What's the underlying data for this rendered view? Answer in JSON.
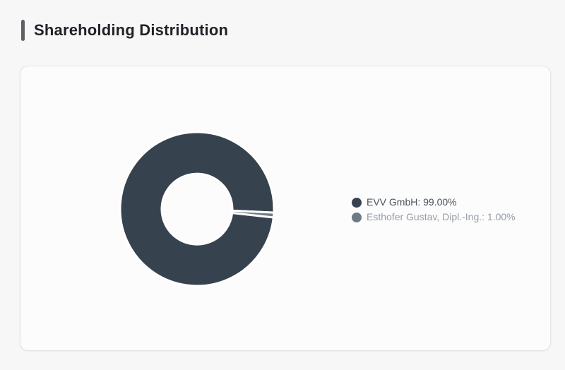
{
  "page": {
    "title": "Shareholding Distribution"
  },
  "colors": {
    "page_bg": "#f7f7f8",
    "card_bg": "#fcfcfd",
    "card_border": "#e4e5e7",
    "title_text": "#1f2226",
    "title_accent_bar": "#5d6165",
    "slice_border": "#ffffff",
    "legend_text_primary": "#49525c",
    "legend_text_secondary": "#949da6"
  },
  "chart_data": {
    "type": "pie",
    "variant": "donut",
    "title": "Shareholding Distribution",
    "labels": [
      "EVV GmbH",
      "Esthofer Gustav, Dipl.-Ing."
    ],
    "values": [
      99.0,
      1.0
    ],
    "unit": "%",
    "colors": [
      "#36434f",
      "#6e7b87"
    ],
    "legend_position": "right",
    "legend": [
      {
        "label": "EVV GmbH: 99.00%",
        "color": "#36434f"
      },
      {
        "label": "Esthofer Gustav, Dipl.-Ing.: 1.00%",
        "color": "#6e7b87"
      }
    ]
  }
}
